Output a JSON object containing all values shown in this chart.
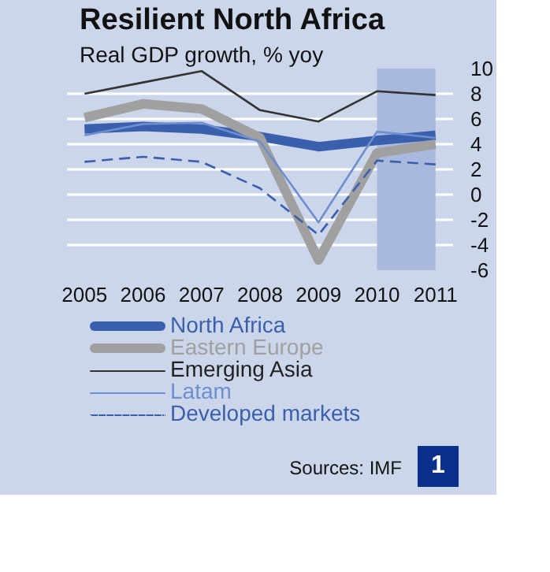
{
  "chart_data": {
    "type": "line",
    "title": "Resilient North Africa",
    "subtitle": "Real GDP growth, % yoy",
    "x": [
      2005,
      2006,
      2007,
      2008,
      2009,
      2010,
      2011
    ],
    "xlim": [
      2004.7,
      2011.3
    ],
    "xticks": [
      2005,
      2006,
      2007,
      2008,
      2009,
      2010,
      2011
    ],
    "ylim": [
      -6,
      10
    ],
    "yticks": [
      10,
      8,
      6,
      4,
      2,
      0,
      -2,
      -4,
      -6
    ],
    "grid": "y",
    "legend": "bottom",
    "marker": "none",
    "bands": [
      {
        "axis": "x",
        "from": 2010,
        "to": 2011,
        "color": "#a9b9dd"
      }
    ],
    "series": [
      {
        "name": "North Africa",
        "color": "#3a5fad",
        "values": [
          5.2,
          5.4,
          5.2,
          4.6,
          3.8,
          4.3,
          4.7
        ]
      },
      {
        "name": "Eastern Europe",
        "color": "#a0a0a0",
        "values": [
          6.1,
          7.2,
          6.8,
          4.5,
          -5.2,
          3.3,
          4.0
        ]
      },
      {
        "name": "Emerging Asia",
        "color": "#333333",
        "values": [
          8.0,
          8.9,
          9.8,
          6.7,
          5.8,
          8.2,
          7.9
        ]
      },
      {
        "name": "Latam",
        "color": "#6d8fcf",
        "values": [
          4.7,
          5.6,
          5.7,
          4.2,
          -2.2,
          5.0,
          4.5
        ]
      },
      {
        "name": "Developed markets",
        "color": "#3a5fad",
        "line_style": "dashed",
        "values": [
          2.6,
          3.0,
          2.6,
          0.5,
          -3.2,
          2.7,
          2.4
        ]
      }
    ],
    "annotations": [
      "Sources: IMF",
      "1"
    ]
  }
}
